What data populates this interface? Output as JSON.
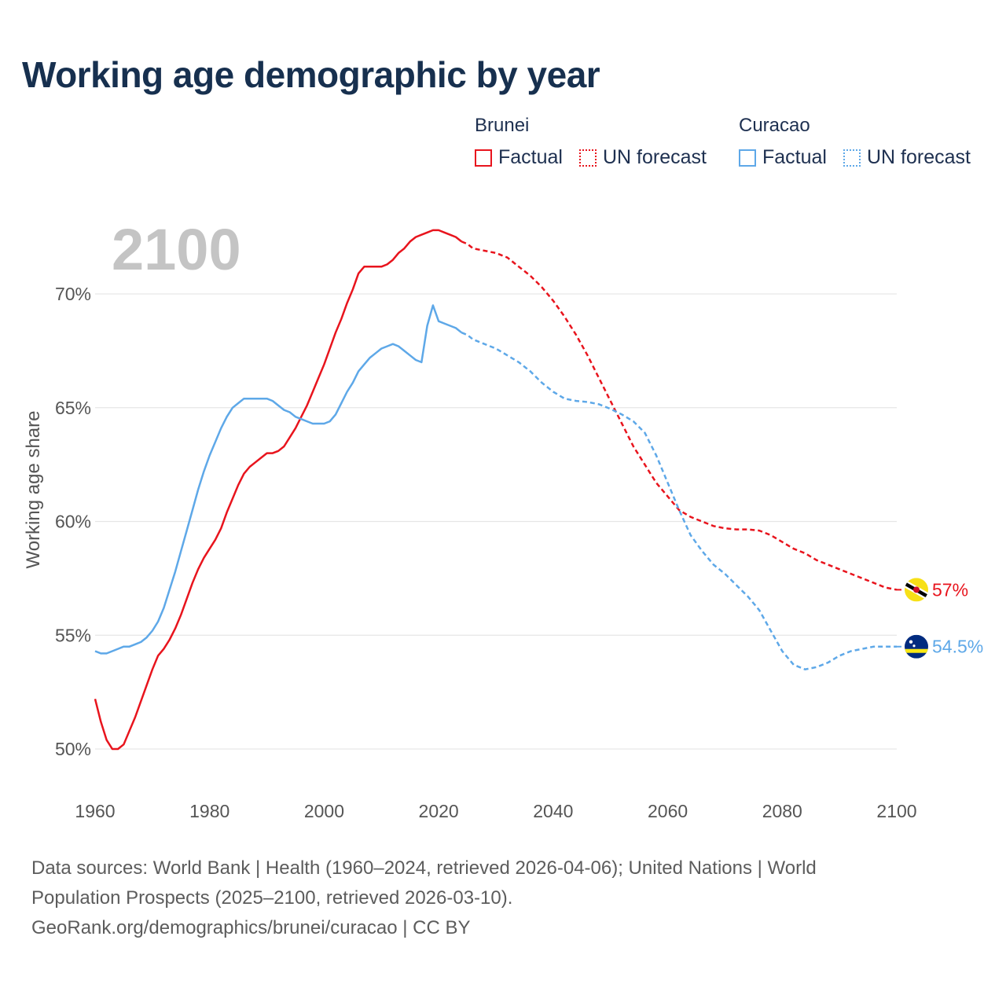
{
  "title": "Working age demographic by year",
  "legend": {
    "groups": [
      {
        "country": "Brunei",
        "color": "#e8141d",
        "factual_label": "Factual",
        "forecast_label": "UN forecast"
      },
      {
        "country": "Curacao",
        "color": "#5ea8e8",
        "factual_label": "Factual",
        "forecast_label": "UN forecast"
      }
    ]
  },
  "footer": {
    "line1": "Data sources: World Bank | Health (1960–2024, retrieved 2026-04-06); United Nations | World",
    "line2": "Population Prospects (2025–2100, retrieved 2026-03-10).",
    "line3": "GeoRank.org/demographics/brunei/curacao | CC BY"
  },
  "chart_data": {
    "type": "line",
    "title": "Working age demographic by year",
    "year_watermark": "2100",
    "xlabel": "",
    "ylabel": "Working age share",
    "xlim": [
      1960,
      2100
    ],
    "ylim": [
      49.0,
      73.5
    ],
    "x_ticks": [
      1960,
      1980,
      2000,
      2020,
      2040,
      2060,
      2080,
      2100
    ],
    "x_tick_labels": [
      "1960",
      "1980",
      "2000",
      "2020",
      "2040",
      "2060",
      "2080",
      "2100"
    ],
    "y_ticks": [
      50,
      55,
      60,
      65,
      70
    ],
    "y_tick_labels": [
      "50%",
      "55%",
      "60%",
      "65%",
      "70%"
    ],
    "grid": true,
    "factual_end_year": 2024,
    "series": [
      {
        "name": "Brunei",
        "color": "#e8141d",
        "end_label": "57%",
        "flag": "brunei-flag",
        "points": [
          [
            1960,
            52.2
          ],
          [
            1961,
            51.2
          ],
          [
            1962,
            50.4
          ],
          [
            1963,
            50.0
          ],
          [
            1964,
            50.0
          ],
          [
            1965,
            50.2
          ],
          [
            1966,
            50.8
          ],
          [
            1967,
            51.4
          ],
          [
            1968,
            52.1
          ],
          [
            1969,
            52.8
          ],
          [
            1970,
            53.5
          ],
          [
            1971,
            54.1
          ],
          [
            1972,
            54.4
          ],
          [
            1973,
            54.8
          ],
          [
            1974,
            55.3
          ],
          [
            1975,
            55.9
          ],
          [
            1976,
            56.6
          ],
          [
            1977,
            57.3
          ],
          [
            1978,
            57.9
          ],
          [
            1979,
            58.4
          ],
          [
            1980,
            58.8
          ],
          [
            1981,
            59.2
          ],
          [
            1982,
            59.7
          ],
          [
            1983,
            60.4
          ],
          [
            1984,
            61.0
          ],
          [
            1985,
            61.6
          ],
          [
            1986,
            62.1
          ],
          [
            1987,
            62.4
          ],
          [
            1988,
            62.6
          ],
          [
            1989,
            62.8
          ],
          [
            1990,
            63.0
          ],
          [
            1991,
            63.0
          ],
          [
            1992,
            63.1
          ],
          [
            1993,
            63.3
          ],
          [
            1994,
            63.7
          ],
          [
            1995,
            64.1
          ],
          [
            1996,
            64.6
          ],
          [
            1997,
            65.1
          ],
          [
            1998,
            65.7
          ],
          [
            1999,
            66.3
          ],
          [
            2000,
            66.9
          ],
          [
            2001,
            67.6
          ],
          [
            2002,
            68.3
          ],
          [
            2003,
            68.9
          ],
          [
            2004,
            69.6
          ],
          [
            2005,
            70.2
          ],
          [
            2006,
            70.9
          ],
          [
            2007,
            71.2
          ],
          [
            2008,
            71.2
          ],
          [
            2009,
            71.2
          ],
          [
            2010,
            71.2
          ],
          [
            2011,
            71.3
          ],
          [
            2012,
            71.5
          ],
          [
            2013,
            71.8
          ],
          [
            2014,
            72.0
          ],
          [
            2015,
            72.3
          ],
          [
            2016,
            72.5
          ],
          [
            2017,
            72.6
          ],
          [
            2018,
            72.7
          ],
          [
            2019,
            72.8
          ],
          [
            2020,
            72.8
          ],
          [
            2021,
            72.7
          ],
          [
            2022,
            72.6
          ],
          [
            2023,
            72.5
          ],
          [
            2024,
            72.3
          ],
          [
            2025,
            72.2
          ],
          [
            2026,
            72.0
          ],
          [
            2028,
            71.9
          ],
          [
            2030,
            71.8
          ],
          [
            2032,
            71.6
          ],
          [
            2034,
            71.2
          ],
          [
            2036,
            70.8
          ],
          [
            2038,
            70.3
          ],
          [
            2040,
            69.7
          ],
          [
            2042,
            69.0
          ],
          [
            2044,
            68.2
          ],
          [
            2046,
            67.3
          ],
          [
            2048,
            66.3
          ],
          [
            2050,
            65.3
          ],
          [
            2052,
            64.3
          ],
          [
            2054,
            63.3
          ],
          [
            2056,
            62.5
          ],
          [
            2058,
            61.7
          ],
          [
            2060,
            61.1
          ],
          [
            2062,
            60.5
          ],
          [
            2064,
            60.2
          ],
          [
            2066,
            60.0
          ],
          [
            2068,
            59.8
          ],
          [
            2070,
            59.7
          ],
          [
            2072,
            59.65
          ],
          [
            2074,
            59.65
          ],
          [
            2076,
            59.6
          ],
          [
            2078,
            59.4
          ],
          [
            2080,
            59.1
          ],
          [
            2082,
            58.8
          ],
          [
            2084,
            58.6
          ],
          [
            2086,
            58.3
          ],
          [
            2088,
            58.1
          ],
          [
            2090,
            57.9
          ],
          [
            2092,
            57.7
          ],
          [
            2094,
            57.5
          ],
          [
            2096,
            57.3
          ],
          [
            2098,
            57.1
          ],
          [
            2100,
            57.0
          ]
        ]
      },
      {
        "name": "Curacao",
        "color": "#5ea8e8",
        "end_label": "54.5%",
        "flag": "curacao-flag",
        "points": [
          [
            1960,
            54.3
          ],
          [
            1961,
            54.2
          ],
          [
            1962,
            54.2
          ],
          [
            1963,
            54.3
          ],
          [
            1964,
            54.4
          ],
          [
            1965,
            54.5
          ],
          [
            1966,
            54.5
          ],
          [
            1967,
            54.6
          ],
          [
            1968,
            54.7
          ],
          [
            1969,
            54.9
          ],
          [
            1970,
            55.2
          ],
          [
            1971,
            55.6
          ],
          [
            1972,
            56.2
          ],
          [
            1973,
            57.0
          ],
          [
            1974,
            57.8
          ],
          [
            1975,
            58.7
          ],
          [
            1976,
            59.6
          ],
          [
            1977,
            60.5
          ],
          [
            1978,
            61.4
          ],
          [
            1979,
            62.2
          ],
          [
            1980,
            62.9
          ],
          [
            1981,
            63.5
          ],
          [
            1982,
            64.1
          ],
          [
            1983,
            64.6
          ],
          [
            1984,
            65.0
          ],
          [
            1985,
            65.2
          ],
          [
            1986,
            65.4
          ],
          [
            1987,
            65.4
          ],
          [
            1988,
            65.4
          ],
          [
            1989,
            65.4
          ],
          [
            1990,
            65.4
          ],
          [
            1991,
            65.3
          ],
          [
            1992,
            65.1
          ],
          [
            1993,
            64.9
          ],
          [
            1994,
            64.8
          ],
          [
            1995,
            64.6
          ],
          [
            1996,
            64.5
          ],
          [
            1997,
            64.4
          ],
          [
            1998,
            64.3
          ],
          [
            1999,
            64.3
          ],
          [
            2000,
            64.3
          ],
          [
            2001,
            64.4
          ],
          [
            2002,
            64.7
          ],
          [
            2003,
            65.2
          ],
          [
            2004,
            65.7
          ],
          [
            2005,
            66.1
          ],
          [
            2006,
            66.6
          ],
          [
            2007,
            66.9
          ],
          [
            2008,
            67.2
          ],
          [
            2009,
            67.4
          ],
          [
            2010,
            67.6
          ],
          [
            2011,
            67.7
          ],
          [
            2012,
            67.8
          ],
          [
            2013,
            67.7
          ],
          [
            2014,
            67.5
          ],
          [
            2015,
            67.3
          ],
          [
            2016,
            67.1
          ],
          [
            2017,
            67.0
          ],
          [
            2018,
            68.6
          ],
          [
            2019,
            69.5
          ],
          [
            2020,
            68.8
          ],
          [
            2021,
            68.7
          ],
          [
            2022,
            68.6
          ],
          [
            2023,
            68.5
          ],
          [
            2024,
            68.3
          ],
          [
            2025,
            68.2
          ],
          [
            2026,
            68.0
          ],
          [
            2028,
            67.8
          ],
          [
            2030,
            67.6
          ],
          [
            2032,
            67.3
          ],
          [
            2034,
            67.0
          ],
          [
            2036,
            66.6
          ],
          [
            2038,
            66.1
          ],
          [
            2040,
            65.7
          ],
          [
            2042,
            65.4
          ],
          [
            2044,
            65.3
          ],
          [
            2046,
            65.25
          ],
          [
            2048,
            65.15
          ],
          [
            2050,
            64.95
          ],
          [
            2052,
            64.7
          ],
          [
            2054,
            64.4
          ],
          [
            2056,
            63.9
          ],
          [
            2058,
            62.9
          ],
          [
            2060,
            61.7
          ],
          [
            2062,
            60.5
          ],
          [
            2064,
            59.4
          ],
          [
            2066,
            58.7
          ],
          [
            2068,
            58.1
          ],
          [
            2070,
            57.7
          ],
          [
            2072,
            57.2
          ],
          [
            2074,
            56.7
          ],
          [
            2076,
            56.1
          ],
          [
            2078,
            55.2
          ],
          [
            2080,
            54.3
          ],
          [
            2082,
            53.7
          ],
          [
            2084,
            53.5
          ],
          [
            2086,
            53.6
          ],
          [
            2088,
            53.8
          ],
          [
            2090,
            54.1
          ],
          [
            2092,
            54.3
          ],
          [
            2094,
            54.4
          ],
          [
            2096,
            54.5
          ],
          [
            2098,
            54.5
          ],
          [
            2100,
            54.5
          ]
        ]
      }
    ]
  }
}
